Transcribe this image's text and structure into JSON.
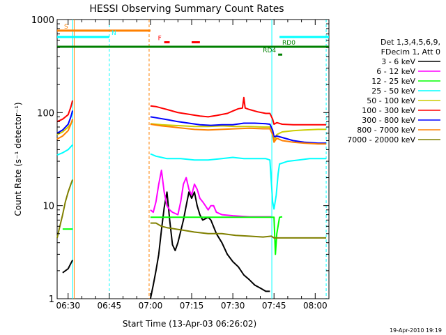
{
  "chart_data": {
    "type": "line",
    "title": "HESSI Observing Summary Count Rates",
    "xlabel": "Start Time (13-Apr-03 06:26:02)",
    "ylabel": "Count Rate (s⁻¹ detector⁻¹)",
    "y_scale": "log",
    "ylim": [
      1,
      1000
    ],
    "xlim_minutes": [
      0,
      99
    ],
    "x_ticks": [
      {
        "label": "06:30",
        "minute": 4
      },
      {
        "label": "06:45",
        "minute": 19
      },
      {
        "label": "07:00",
        "minute": 34
      },
      {
        "label": "07:15",
        "minute": 49
      },
      {
        "label": "07:30",
        "minute": 64
      },
      {
        "label": "07:45",
        "minute": 79
      },
      {
        "label": "08:00",
        "minute": 94
      }
    ],
    "y_ticks": [
      "1",
      "10",
      "100",
      "1000"
    ],
    "legend_header": [
      "Det 1,3,4,5,6,9,",
      "FDecim 1, Att 0"
    ],
    "series": [
      {
        "name": "3 - 6 keV",
        "color": "#000000",
        "points": [
          [
            2,
            1.9
          ],
          [
            4,
            2.1
          ],
          [
            5,
            2.4
          ],
          [
            5.6,
            2.6
          ],
          [
            34,
            1.0
          ],
          [
            35,
            1.4
          ],
          [
            36,
            2.0
          ],
          [
            37,
            3.0
          ],
          [
            38,
            5.5
          ],
          [
            39,
            9.5
          ],
          [
            40,
            14
          ],
          [
            41,
            7
          ],
          [
            42,
            3.8
          ],
          [
            43,
            3.3
          ],
          [
            44,
            4.0
          ],
          [
            46,
            7
          ],
          [
            47,
            10
          ],
          [
            48,
            14
          ],
          [
            49,
            12
          ],
          [
            50,
            14
          ],
          [
            51,
            10
          ],
          [
            52,
            8
          ],
          [
            53,
            7
          ],
          [
            55,
            7.5
          ],
          [
            56,
            7
          ],
          [
            58,
            5
          ],
          [
            60,
            4
          ],
          [
            62,
            3
          ],
          [
            64,
            2.5
          ],
          [
            66,
            2.2
          ],
          [
            68,
            1.8
          ],
          [
            70,
            1.6
          ],
          [
            72,
            1.4
          ],
          [
            74,
            1.3
          ],
          [
            76,
            1.2
          ],
          [
            77.5,
            1.2
          ]
        ]
      },
      {
        "name": "6 - 12 keV",
        "color": "#ff00ff",
        "points": [
          [
            34,
            9
          ],
          [
            35,
            8.5
          ],
          [
            36,
            11
          ],
          [
            37,
            17
          ],
          [
            38,
            24
          ],
          [
            39,
            14
          ],
          [
            40,
            10
          ],
          [
            41,
            9
          ],
          [
            42,
            8.5
          ],
          [
            44,
            8
          ],
          [
            45,
            11
          ],
          [
            46,
            17
          ],
          [
            47,
            20
          ],
          [
            48,
            15
          ],
          [
            49,
            13
          ],
          [
            50,
            17
          ],
          [
            51,
            15
          ],
          [
            52,
            12
          ],
          [
            53,
            11
          ],
          [
            54,
            10
          ],
          [
            55,
            9
          ],
          [
            56,
            10
          ],
          [
            57,
            10
          ],
          [
            58,
            8.5
          ],
          [
            60,
            8
          ],
          [
            64,
            7.8
          ],
          [
            70,
            7.6
          ],
          [
            76,
            7.6
          ],
          [
            78,
            7.6
          ]
        ]
      },
      {
        "name": "12 - 25 keV",
        "color": "#00ff00",
        "points": [
          [
            2,
            5.6
          ],
          [
            4,
            5.6
          ],
          [
            5,
            5.6
          ],
          [
            5.6,
            5.6
          ],
          [
            34,
            7.5
          ],
          [
            40,
            7.5
          ],
          [
            45,
            7.5
          ],
          [
            50,
            7.5
          ],
          [
            55,
            7.5
          ],
          [
            60,
            7.5
          ],
          [
            65,
            7.5
          ],
          [
            70,
            7.5
          ],
          [
            75,
            7.5
          ],
          [
            79,
            7.5
          ],
          [
            79.5,
            3.0
          ],
          [
            80,
            5.0
          ],
          [
            81,
            7.5
          ],
          [
            82,
            7.6
          ]
        ]
      },
      {
        "name": "25 - 50 keV",
        "color": "#00ffff",
        "points": [
          [
            0,
            35
          ],
          [
            2,
            37
          ],
          [
            4,
            40
          ],
          [
            5,
            43
          ],
          [
            5.6,
            45
          ],
          [
            34,
            36
          ],
          [
            36,
            34
          ],
          [
            38,
            33
          ],
          [
            40,
            32
          ],
          [
            45,
            32
          ],
          [
            50,
            31
          ],
          [
            55,
            31
          ],
          [
            60,
            32
          ],
          [
            64,
            33
          ],
          [
            68,
            32
          ],
          [
            72,
            32
          ],
          [
            76,
            32
          ],
          [
            77.5,
            31
          ],
          [
            78.5,
            11
          ],
          [
            79,
            9.2
          ],
          [
            79.8,
            13
          ],
          [
            80.5,
            22
          ],
          [
            81,
            28
          ],
          [
            84,
            30
          ],
          [
            88,
            31
          ],
          [
            92,
            32
          ],
          [
            96,
            32
          ],
          [
            98,
            32
          ]
        ]
      },
      {
        "name": "50 - 100 keV",
        "color": "#cccc00",
        "points": [
          [
            0,
            58
          ],
          [
            2,
            62
          ],
          [
            4,
            70
          ],
          [
            5,
            76
          ],
          [
            5.6,
            82
          ],
          [
            34,
            76
          ],
          [
            38,
            74
          ],
          [
            42,
            73
          ],
          [
            46,
            72
          ],
          [
            50,
            71
          ],
          [
            55,
            71
          ],
          [
            60,
            72
          ],
          [
            65,
            71
          ],
          [
            70,
            71
          ],
          [
            75,
            70
          ],
          [
            77.5,
            70
          ],
          [
            78.5,
            60
          ],
          [
            79,
            50
          ],
          [
            80,
            58
          ],
          [
            82,
            62
          ],
          [
            86,
            64
          ],
          [
            90,
            65
          ],
          [
            95,
            66
          ],
          [
            98,
            66
          ]
        ]
      },
      {
        "name": "100 - 300 keV",
        "color": "#ff0000",
        "points": [
          [
            0,
            80
          ],
          [
            2,
            85
          ],
          [
            4,
            95
          ],
          [
            5,
            115
          ],
          [
            5.6,
            135
          ],
          [
            34,
            118
          ],
          [
            36,
            116
          ],
          [
            38,
            112
          ],
          [
            40,
            108
          ],
          [
            44,
            100
          ],
          [
            48,
            96
          ],
          [
            52,
            92
          ],
          [
            55,
            90
          ],
          [
            58,
            93
          ],
          [
            62,
            98
          ],
          [
            64,
            104
          ],
          [
            66,
            110
          ],
          [
            67.5,
            112
          ],
          [
            68,
            145
          ],
          [
            68.5,
            112
          ],
          [
            70,
            108
          ],
          [
            73,
            102
          ],
          [
            76,
            98
          ],
          [
            77.5,
            98
          ],
          [
            78.5,
            85
          ],
          [
            79,
            75
          ],
          [
            80,
            78
          ],
          [
            82,
            75
          ],
          [
            86,
            74
          ],
          [
            90,
            74
          ],
          [
            95,
            74
          ],
          [
            98,
            74
          ]
        ]
      },
      {
        "name": "300 - 800 keV",
        "color": "#0000ff",
        "points": [
          [
            0,
            60
          ],
          [
            2,
            65
          ],
          [
            4,
            75
          ],
          [
            5,
            90
          ],
          [
            5.6,
            105
          ],
          [
            34,
            90
          ],
          [
            36,
            88
          ],
          [
            40,
            84
          ],
          [
            44,
            80
          ],
          [
            48,
            77
          ],
          [
            52,
            74
          ],
          [
            56,
            73
          ],
          [
            60,
            74
          ],
          [
            64,
            74
          ],
          [
            68,
            77
          ],
          [
            72,
            77
          ],
          [
            76,
            76
          ],
          [
            77.5,
            75
          ],
          [
            78.5,
            65
          ],
          [
            79,
            55
          ],
          [
            80,
            56
          ],
          [
            82,
            54
          ],
          [
            86,
            50
          ],
          [
            90,
            48
          ],
          [
            95,
            47
          ],
          [
            98,
            47
          ]
        ]
      },
      {
        "name": "800 - 7000 keV",
        "color": "#ff8000",
        "points": [
          [
            0,
            52
          ],
          [
            2,
            56
          ],
          [
            4,
            64
          ],
          [
            5,
            75
          ],
          [
            5.6,
            85
          ],
          [
            34,
            75
          ],
          [
            38,
            72
          ],
          [
            42,
            70
          ],
          [
            46,
            68
          ],
          [
            50,
            66
          ],
          [
            55,
            65
          ],
          [
            60,
            66
          ],
          [
            65,
            67
          ],
          [
            70,
            68
          ],
          [
            75,
            67
          ],
          [
            77.5,
            67
          ],
          [
            78.5,
            58
          ],
          [
            79,
            48
          ],
          [
            80,
            53
          ],
          [
            82,
            50
          ],
          [
            86,
            48
          ],
          [
            90,
            47
          ],
          [
            95,
            46
          ],
          [
            98,
            46
          ]
        ]
      },
      {
        "name": "7000 - 20000 keV",
        "color": "#808000",
        "points": [
          [
            0,
            4.5
          ],
          [
            1,
            6
          ],
          [
            2,
            8
          ],
          [
            3,
            11
          ],
          [
            4,
            14
          ],
          [
            5,
            17
          ],
          [
            5.6,
            19
          ],
          [
            34,
            6.5
          ],
          [
            36,
            6.5
          ],
          [
            38,
            6.0
          ],
          [
            40,
            5.8
          ],
          [
            45,
            5.5
          ],
          [
            50,
            5.2
          ],
          [
            55,
            5.0
          ],
          [
            60,
            5.0
          ],
          [
            65,
            4.8
          ],
          [
            70,
            4.7
          ],
          [
            75,
            4.6
          ],
          [
            78,
            4.7
          ],
          [
            79,
            4.5
          ],
          [
            80,
            4.5
          ],
          [
            85,
            4.5
          ],
          [
            90,
            4.5
          ],
          [
            95,
            4.5
          ],
          [
            98,
            4.5
          ]
        ]
      }
    ],
    "flags": [
      {
        "label": "S",
        "color": "#ff8000",
        "y": 760,
        "segments": [
          [
            0,
            34
          ]
        ]
      },
      {
        "label": "N",
        "color": "#00ffff",
        "y": 650,
        "segments": [
          [
            0,
            19
          ],
          [
            81,
            99
          ]
        ]
      },
      {
        "label": "F",
        "color": "#ff0000",
        "y": 570,
        "segments": [
          [
            39,
            41
          ],
          [
            49,
            52
          ]
        ]
      },
      {
        "label": "RD0",
        "color": "#008000",
        "y": 510,
        "segments": [
          [
            0,
            99
          ]
        ]
      },
      {
        "label": "RD4",
        "color": "#008000",
        "y": 420,
        "segments": [
          [
            80.5,
            82
          ]
        ]
      }
    ],
    "vlines": [
      {
        "minute": 5.7,
        "color": "#00ffff",
        "style": "solid"
      },
      {
        "minute": 6.2,
        "color": "#ff8000",
        "style": "solid"
      },
      {
        "minute": 19,
        "color": "#00ffff",
        "style": "dashed"
      },
      {
        "minute": 33.5,
        "color": "#ff8000",
        "style": "dashed"
      },
      {
        "minute": 78.2,
        "color": "#00ffff",
        "style": "solid"
      },
      {
        "minute": 98,
        "color": "#00ffff",
        "style": "dashed"
      }
    ],
    "footer_date": "19-Apr-2010 19:19"
  }
}
